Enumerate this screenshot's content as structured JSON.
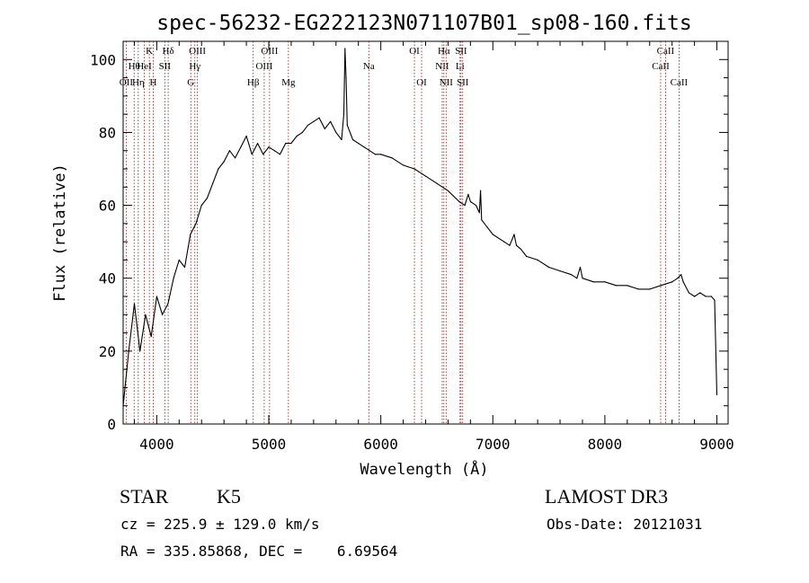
{
  "chart_data": {
    "type": "line",
    "title": "spec-56232-EG222123N071107B01_sp08-160.fits",
    "xlabel": "Wavelength (Å)",
    "ylabel": "Flux (relative)",
    "xlim": [
      3700,
      9100
    ],
    "ylim": [
      0,
      105
    ],
    "x_ticks": [
      4000,
      5000,
      6000,
      7000,
      8000,
      9000
    ],
    "x_tick_labels": [
      "4000",
      "5000",
      "6000",
      "7000",
      "8000",
      "9000"
    ],
    "y_ticks": [
      0,
      20,
      40,
      60,
      80,
      100
    ],
    "y_tick_labels": [
      "0",
      "20",
      "40",
      "60",
      "80",
      "100"
    ],
    "grid": false,
    "line_color": "#000000",
    "marker_color": "#8b1a1a",
    "series": [
      {
        "x": [
          3700,
          3750,
          3800,
          3850,
          3900,
          3950,
          4000,
          4050,
          4100,
          4150,
          4200,
          4250,
          4300,
          4350,
          4400,
          4450,
          4500,
          4550,
          4600,
          4650,
          4700,
          4750,
          4800,
          4850,
          4900,
          4950,
          5000,
          5050,
          5100,
          5150,
          5200,
          5250,
          5300,
          5350,
          5400,
          5450,
          5500,
          5550,
          5600,
          5650,
          5670,
          5680,
          5690,
          5700,
          5750,
          5800,
          5850,
          5900,
          5950,
          6000,
          6100,
          6200,
          6300,
          6400,
          6500,
          6600,
          6700,
          6750,
          6780,
          6800,
          6850,
          6880,
          6890,
          6900,
          6950,
          7000,
          7100,
          7150,
          7190,
          7210,
          7250,
          7300,
          7400,
          7500,
          7600,
          7700,
          7750,
          7780,
          7800,
          7900,
          8000,
          8100,
          8200,
          8300,
          8400,
          8500,
          8600,
          8650,
          8680,
          8700,
          8750,
          8800,
          8850,
          8900,
          8950,
          8980,
          9000
        ],
        "y": [
          5,
          20,
          33,
          20,
          30,
          24,
          35,
          30,
          33,
          40,
          45,
          43,
          52,
          55,
          60,
          62,
          66,
          70,
          72,
          75,
          73,
          76,
          79,
          74,
          77,
          74,
          76,
          75,
          74,
          77,
          77,
          79,
          80,
          82,
          83,
          84,
          81,
          83,
          80,
          78,
          85,
          103,
          95,
          82,
          78,
          77,
          76,
          75,
          74,
          74,
          73,
          71,
          70,
          68,
          66,
          64,
          61,
          60,
          63,
          61,
          60,
          58,
          64,
          56,
          54,
          52,
          50,
          49,
          52,
          49,
          48,
          46,
          45,
          43,
          42,
          41,
          40,
          43,
          40,
          39,
          39,
          38,
          38,
          37,
          37,
          38,
          39,
          40,
          41,
          39,
          36,
          35,
          36,
          35,
          35,
          34,
          8
        ]
      }
    ],
    "lines": [
      {
        "label": "OII",
        "x": 3727,
        "row": 2
      },
      {
        "label": "Hθ",
        "x": 3798,
        "row": 1
      },
      {
        "label": "Hη",
        "x": 3835,
        "row": 2
      },
      {
        "label": "HeI",
        "x": 3889,
        "row": 1
      },
      {
        "label": "K",
        "x": 3934,
        "row": 0
      },
      {
        "label": "H",
        "x": 3969,
        "row": 2
      },
      {
        "label": "SII",
        "x": 4072,
        "row": 1
      },
      {
        "label": "Hδ",
        "x": 4102,
        "row": 0
      },
      {
        "label": "G",
        "x": 4304,
        "row": 2
      },
      {
        "label": "Hγ",
        "x": 4340,
        "row": 1
      },
      {
        "label": "OIII",
        "x": 4363,
        "row": 0
      },
      {
        "label": "Hβ",
        "x": 4861,
        "row": 2
      },
      {
        "label": "OIII",
        "x": 4959,
        "row": 1
      },
      {
        "label": "OIII",
        "x": 5007,
        "row": 0
      },
      {
        "label": "Mg",
        "x": 5175,
        "row": 2
      },
      {
        "label": "Na",
        "x": 5893,
        "row": 1
      },
      {
        "label": "OI",
        "x": 6300,
        "row": 0
      },
      {
        "label": "OI",
        "x": 6364,
        "row": 2
      },
      {
        "label": "NII",
        "x": 6548,
        "row": 1
      },
      {
        "label": "Hα",
        "x": 6563,
        "row": 0
      },
      {
        "label": "NII",
        "x": 6583,
        "row": 2
      },
      {
        "label": "Li",
        "x": 6707,
        "row": 1
      },
      {
        "label": "SII",
        "x": 6716,
        "row": 0
      },
      {
        "label": "SII",
        "x": 6731,
        "row": 2
      },
      {
        "label": "CaII",
        "x": 8498,
        "row": 1
      },
      {
        "label": "CaII",
        "x": 8542,
        "row": 0
      },
      {
        "label": "CaII",
        "x": 8662,
        "row": 2
      }
    ]
  },
  "info": {
    "object_class": "STAR",
    "subclass": "K5",
    "survey": "LAMOST DR3",
    "redshift_text": "cz = 225.9 ± 129.0 km/s",
    "obs_date_text": "Obs-Date: 20121031",
    "coords_text": "RA = 335.85868, DEC =    6.69564"
  }
}
